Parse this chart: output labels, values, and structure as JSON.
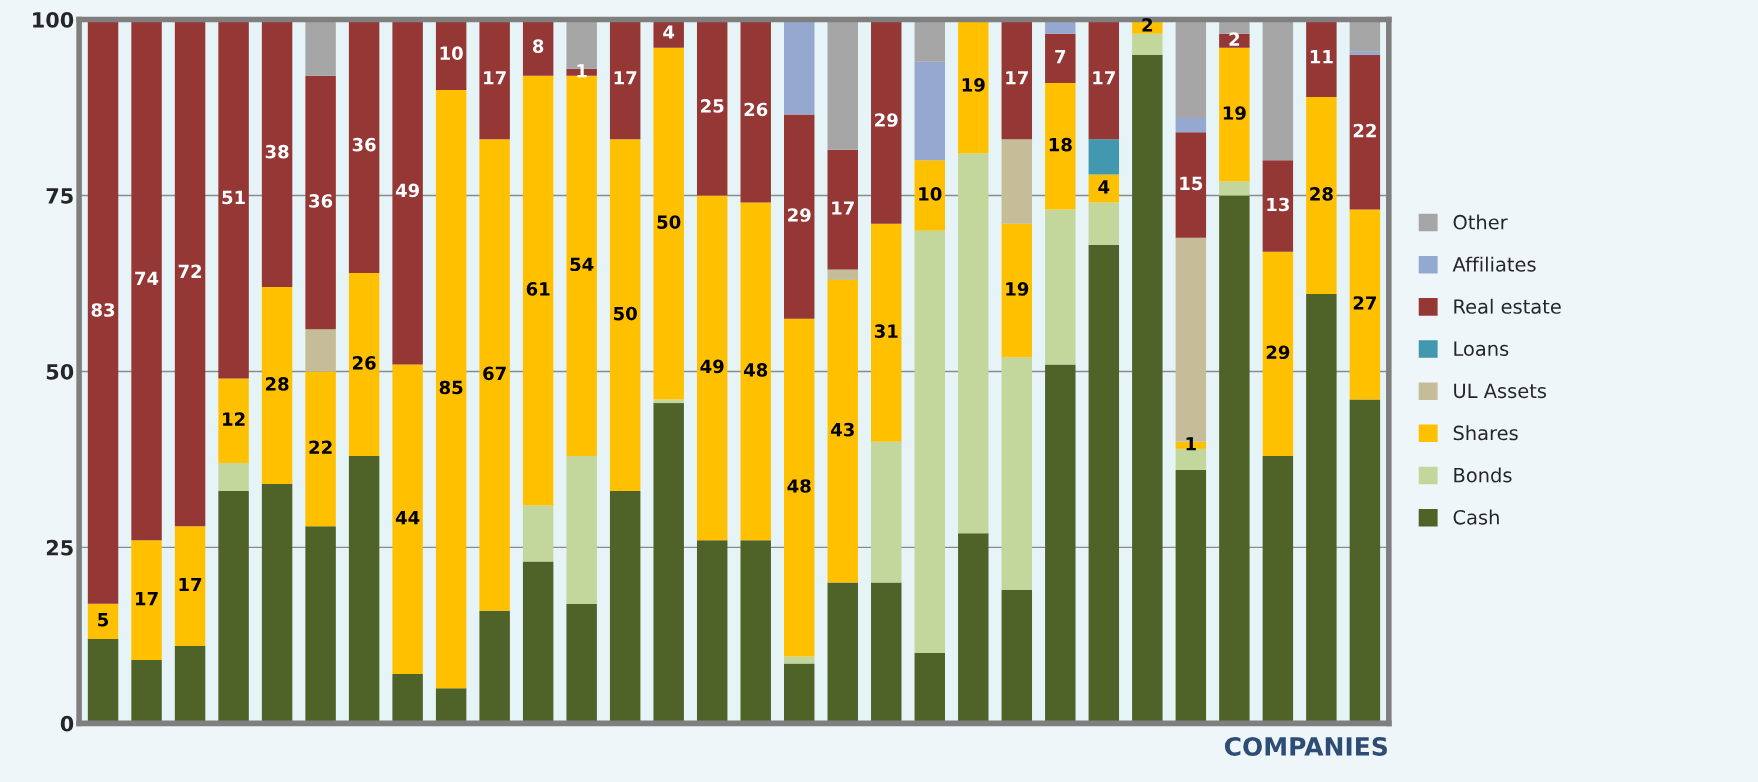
{
  "chart_data": {
    "type": "bar",
    "stacked": true,
    "xlabel": "COMPANIES",
    "categories": [
      null,
      null,
      null,
      null,
      null,
      null,
      null,
      null,
      null,
      null,
      null,
      null,
      null,
      null,
      null,
      null,
      null,
      null,
      null,
      null,
      null,
      null,
      null,
      null,
      null,
      null,
      null,
      null,
      null,
      null
    ],
    "ylim": [
      0,
      100
    ],
    "yticks": [
      0,
      25,
      50,
      75,
      100
    ],
    "grid": "y",
    "legend": "right",
    "series": [
      {
        "name": "Cash",
        "color": "#4f6228",
        "values": [
          12,
          9,
          11,
          33,
          34,
          28,
          38,
          7,
          5,
          16,
          23,
          17,
          33,
          45.5,
          26,
          26,
          8.5,
          20,
          20,
          10,
          27,
          19,
          51,
          68,
          95,
          36,
          75,
          38,
          61,
          46
        ]
      },
      {
        "name": "Bonds",
        "color": "#c3d69b",
        "values": [
          null,
          null,
          null,
          4,
          null,
          null,
          null,
          null,
          null,
          null,
          8,
          21,
          null,
          0.5,
          null,
          null,
          1,
          null,
          20,
          60,
          54,
          33,
          22,
          6,
          3,
          3,
          2,
          null,
          null,
          null
        ]
      },
      {
        "name": "Shares",
        "color": "#ffc000",
        "values": [
          5,
          17,
          17,
          12,
          28,
          22,
          26,
          44,
          85,
          67,
          61,
          54,
          50,
          50,
          49,
          48,
          48,
          43,
          31,
          10,
          19,
          19,
          18,
          4,
          2,
          1,
          19,
          29,
          28,
          27
        ],
        "value_labels": [
          "5",
          "17",
          "17",
          "12",
          "28",
          "22",
          "26",
          "44",
          "85",
          "67",
          "61",
          "54",
          "50",
          "50",
          "49",
          "48",
          "48",
          "43",
          "31",
          "10",
          "19",
          "19",
          "18",
          "4",
          "2",
          "1",
          "19",
          "29",
          "28",
          "27"
        ]
      },
      {
        "name": "UL Assets",
        "color": "#c4bd97",
        "values": [
          null,
          null,
          null,
          null,
          null,
          6,
          null,
          null,
          null,
          null,
          null,
          null,
          null,
          null,
          null,
          null,
          null,
          1.5,
          null,
          null,
          null,
          12,
          null,
          null,
          null,
          29,
          null,
          null,
          null,
          null
        ]
      },
      {
        "name": "Loans",
        "color": "#4198af",
        "values": [
          null,
          null,
          null,
          null,
          null,
          null,
          null,
          null,
          null,
          null,
          null,
          null,
          null,
          null,
          null,
          null,
          null,
          null,
          null,
          null,
          null,
          null,
          null,
          5,
          null,
          null,
          null,
          null,
          null,
          null
        ]
      },
      {
        "name": "Real estate",
        "color": "#953735",
        "values": [
          83,
          74,
          72,
          51,
          38,
          36,
          36,
          49,
          10,
          17,
          8,
          1,
          17,
          4,
          25,
          26,
          29,
          17,
          29,
          null,
          null,
          17,
          7,
          17,
          null,
          15,
          2,
          13,
          11,
          22
        ],
        "value_labels": [
          "83",
          "74",
          "72",
          "51",
          "38",
          "36",
          "36",
          "49",
          "10",
          "17",
          "8",
          "1",
          "17",
          "4",
          "25",
          "26",
          "29",
          "17",
          "29",
          null,
          null,
          "17",
          "7",
          "17",
          null,
          "15",
          "2",
          "13",
          "11",
          "22"
        ]
      },
      {
        "name": "Affiliates",
        "color": "#95a9d0",
        "values": [
          null,
          null,
          null,
          null,
          null,
          null,
          null,
          null,
          null,
          null,
          null,
          null,
          null,
          null,
          null,
          null,
          13.5,
          null,
          null,
          14,
          null,
          null,
          2,
          null,
          null,
          2,
          null,
          null,
          null,
          0.5
        ]
      },
      {
        "name": "Other",
        "color": "#a6a6a6",
        "values": [
          null,
          null,
          null,
          null,
          null,
          8,
          null,
          null,
          null,
          null,
          null,
          7,
          null,
          null,
          null,
          null,
          null,
          18.5,
          null,
          6,
          null,
          null,
          null,
          null,
          null,
          14,
          2,
          20,
          null,
          4.5
        ]
      }
    ]
  }
}
